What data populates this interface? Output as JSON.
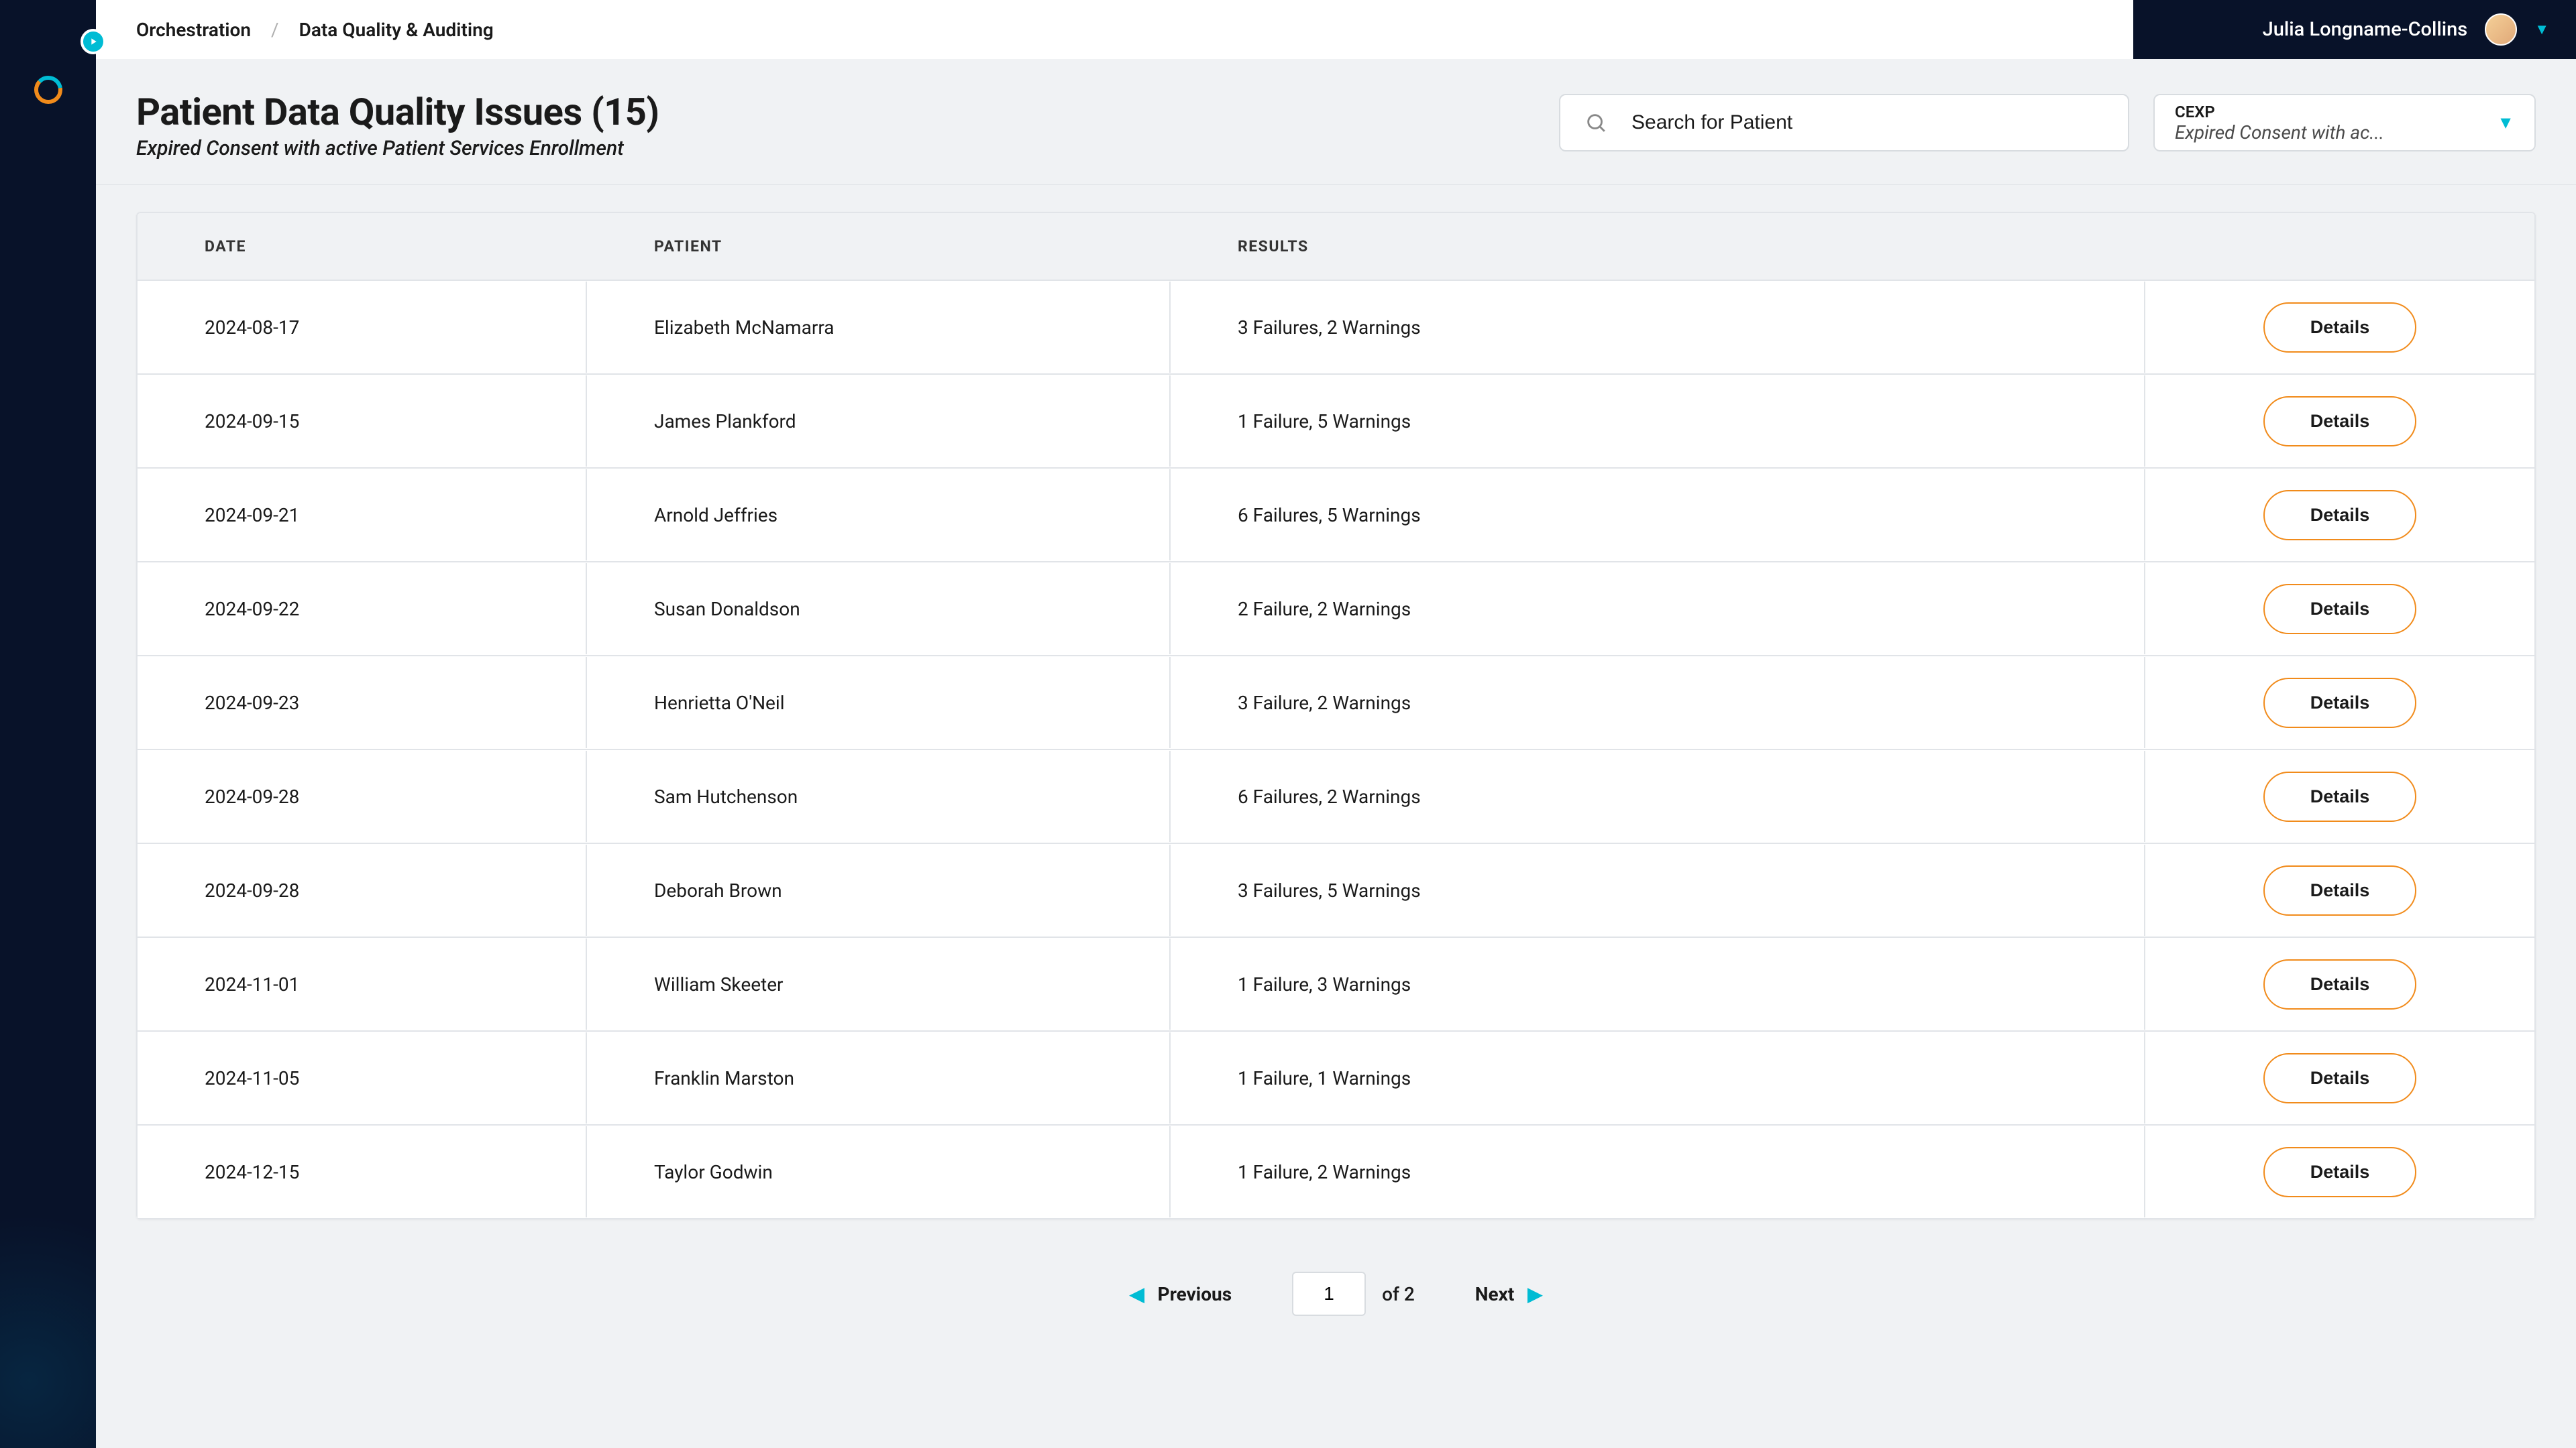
{
  "colors": {
    "sidebar_bg": "#081229",
    "accent_cyan": "#00bcd4",
    "accent_orange": "#f18b1b",
    "page_bg": "#f0f2f4",
    "border": "#e1e4e8",
    "text": "#1a1a1a"
  },
  "breadcrumb": {
    "items": [
      "Orchestration",
      "Data Quality & Auditing"
    ],
    "separator": "/"
  },
  "user": {
    "name": "Julia Longname-Collins"
  },
  "page": {
    "title": "Patient Data Quality Issues (15)",
    "subtitle": "Expired Consent with active Patient Services Enrollment"
  },
  "search": {
    "placeholder": "Search for Patient"
  },
  "filter": {
    "code": "CEXP",
    "label": "Expired Consent with ac..."
  },
  "table": {
    "columns": [
      "DATE",
      "PATIENT",
      "RESULTS"
    ],
    "action_label": "Details",
    "rows": [
      {
        "date": "2024-08-17",
        "patient": "Elizabeth McNamarra",
        "results": "3 Failures, 2 Warnings"
      },
      {
        "date": "2024-09-15",
        "patient": "James Plankford",
        "results": "1 Failure, 5 Warnings"
      },
      {
        "date": "2024-09-21",
        "patient": "Arnold Jeffries",
        "results": "6 Failures, 5 Warnings"
      },
      {
        "date": "2024-09-22",
        "patient": "Susan Donaldson",
        "results": "2 Failure, 2 Warnings"
      },
      {
        "date": "2024-09-23",
        "patient": "Henrietta O'Neil",
        "results": "3 Failure, 2 Warnings"
      },
      {
        "date": "2024-09-28",
        "patient": "Sam Hutchenson",
        "results": "6 Failures, 2 Warnings"
      },
      {
        "date": "2024-09-28",
        "patient": "Deborah Brown",
        "results": "3 Failures, 5 Warnings"
      },
      {
        "date": "2024-11-01",
        "patient": "William Skeeter",
        "results": "1 Failure, 3 Warnings"
      },
      {
        "date": "2024-11-05",
        "patient": "Franklin Marston",
        "results": "1 Failure, 1 Warnings"
      },
      {
        "date": "2024-12-15",
        "patient": "Taylor Godwin",
        "results": "1 Failure, 2 Warnings"
      }
    ]
  },
  "pagination": {
    "previous": "Previous",
    "next": "Next",
    "current": "1",
    "of_label": "of 2"
  }
}
